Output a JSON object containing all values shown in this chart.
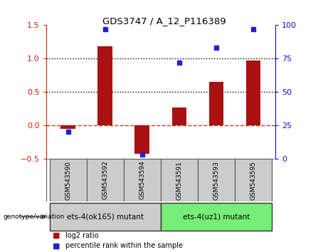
{
  "title": "GDS3747 / A_12_P116389",
  "categories": [
    "GSM543590",
    "GSM543592",
    "GSM543594",
    "GSM543591",
    "GSM543593",
    "GSM543595"
  ],
  "log2_ratio": [
    -0.05,
    1.18,
    -0.43,
    0.27,
    0.65,
    0.97
  ],
  "percentile": [
    20,
    97,
    3,
    72,
    83,
    97
  ],
  "bar_color": "#aa1111",
  "dot_color": "#2222cc",
  "ylim_left": [
    -0.5,
    1.5
  ],
  "ylim_right": [
    0,
    100
  ],
  "yticks_left": [
    -0.5,
    0.0,
    0.5,
    1.0,
    1.5
  ],
  "yticks_right": [
    0,
    25,
    50,
    75,
    100
  ],
  "hlines": [
    0.5,
    1.0
  ],
  "group1_label": "ets-4(ok165) mutant",
  "group2_label": "ets-4(uz1) mutant",
  "group1_color": "#cccccc",
  "group2_color": "#77ee77",
  "genotype_label": "genotype/variation",
  "legend_bar_label": "log2 ratio",
  "legend_dot_label": "percentile rank within the sample",
  "background_color": "#ffffff",
  "tick_color_left": "#cc2200",
  "tick_color_right": "#1111cc",
  "zero_line_color": "#cc2200",
  "dotted_line_color": "#000000",
  "bar_width": 0.4
}
